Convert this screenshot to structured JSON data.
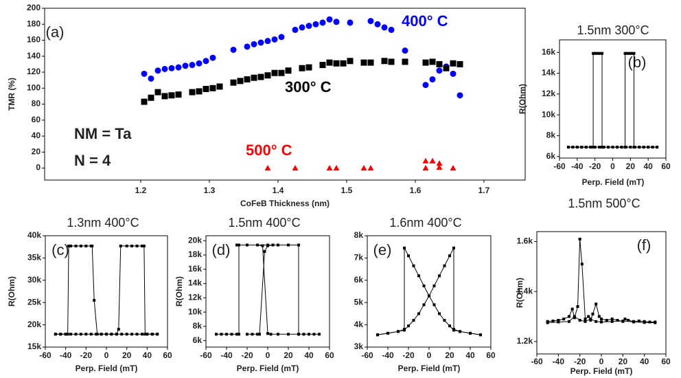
{
  "chart_data": [
    {
      "type": "scatter",
      "panel_label": "(a)",
      "annotations": [
        "NM = Ta",
        "N = 4"
      ],
      "xlabel": "CoFeB Thickness (nm)",
      "ylabel": "TMR (%)",
      "xlim": [
        1.06,
        1.76
      ],
      "xticks": [
        1.2,
        1.3,
        1.4,
        1.5,
        1.6,
        1.7
      ],
      "ylim": [
        -15,
        200
      ],
      "yticks": [
        0,
        20,
        40,
        60,
        80,
        100,
        120,
        140,
        160,
        180,
        200
      ],
      "series": [
        {
          "name": "400° C",
          "color": "#0000ff",
          "marker": "circle",
          "x": [
            1.205,
            1.215,
            1.225,
            1.235,
            1.245,
            1.255,
            1.265,
            1.275,
            1.285,
            1.295,
            1.305,
            1.335,
            1.355,
            1.365,
            1.375,
            1.385,
            1.395,
            1.405,
            1.425,
            1.435,
            1.445,
            1.455,
            1.465,
            1.475,
            1.485,
            1.505,
            1.535,
            1.545,
            1.555,
            1.565,
            1.585,
            1.615,
            1.625,
            1.635,
            1.645,
            1.655,
            1.665
          ],
          "values": [
            118,
            112,
            122,
            124,
            125,
            126,
            128,
            129,
            131,
            134,
            138,
            148,
            152,
            155,
            157,
            159,
            161,
            164,
            173,
            176,
            178,
            180,
            182,
            186,
            183,
            182,
            184,
            180,
            176,
            173,
            147,
            104,
            111,
            122,
            127,
            118,
            91
          ]
        },
        {
          "name": "300° C",
          "color": "#000000",
          "marker": "square",
          "x": [
            1.205,
            1.215,
            1.225,
            1.235,
            1.245,
            1.255,
            1.275,
            1.285,
            1.295,
            1.305,
            1.315,
            1.335,
            1.345,
            1.355,
            1.365,
            1.375,
            1.385,
            1.395,
            1.405,
            1.415,
            1.435,
            1.445,
            1.465,
            1.475,
            1.485,
            1.495,
            1.505,
            1.525,
            1.535,
            1.555,
            1.565,
            1.585,
            1.615,
            1.625,
            1.635,
            1.645,
            1.655,
            1.665
          ],
          "values": [
            83,
            88,
            95,
            90,
            91,
            92,
            95,
            96,
            99,
            100,
            102,
            107,
            109,
            111,
            113,
            114,
            116,
            119,
            119,
            122,
            125,
            126,
            129,
            132,
            131,
            131,
            134,
            132,
            132,
            134,
            133,
            133,
            132,
            133,
            130,
            125,
            131,
            130
          ]
        },
        {
          "name": "500° C",
          "color": "#ff0000",
          "marker": "triangle",
          "x": [
            1.385,
            1.425,
            1.475,
            1.485,
            1.525,
            1.535,
            1.615,
            1.615,
            1.625,
            1.635,
            1.635,
            1.655
          ],
          "values": [
            0,
            0,
            0,
            0,
            0,
            0,
            0,
            9,
            9,
            6,
            1,
            0
          ]
        }
      ]
    },
    {
      "type": "line",
      "title": "1.5nm  300°C",
      "panel_label": "(b)",
      "xlabel": "Perp. Field (mT)",
      "ylabel": "R(Ohm)",
      "xlim": [
        -60,
        60
      ],
      "xticks": [
        -60,
        -40,
        -20,
        0,
        20,
        40,
        60
      ],
      "ylim": [
        5850,
        17200
      ],
      "yticks": [
        {
          "value": 6000,
          "label": "6k"
        },
        {
          "value": 8000,
          "label": "8k"
        },
        {
          "value": 10000,
          "label": "10k"
        },
        {
          "value": 12000,
          "label": "12k"
        },
        {
          "value": 14000,
          "label": "14k"
        },
        {
          "value": 16000,
          "label": "16k"
        }
      ],
      "series": [
        {
          "color": "#000000",
          "marker": "square",
          "x": [
            -50,
            -45,
            -40,
            -35,
            -30,
            -25,
            -20,
            -15,
            -10,
            -5,
            0,
            5,
            10,
            14,
            14,
            16,
            18,
            20,
            22,
            24,
            24,
            30,
            35,
            40,
            45,
            50
          ],
          "values": [
            6900,
            6900,
            6900,
            6900,
            6900,
            6900,
            6900,
            6900,
            6900,
            6900,
            6900,
            6900,
            6900,
            6900,
            15900,
            15900,
            15900,
            15900,
            15900,
            15900,
            6900,
            6900,
            6900,
            6900,
            6900,
            6900
          ]
        },
        {
          "color": "#000000",
          "marker": "square",
          "x": [
            -50,
            -45,
            -40,
            -35,
            -30,
            -25,
            -22,
            -22,
            -20,
            -18,
            -16,
            -14,
            -12,
            -12,
            -10,
            -5,
            0,
            5,
            10,
            15,
            20,
            25,
            30,
            35,
            40,
            45,
            50
          ],
          "values": [
            6900,
            6900,
            6900,
            6900,
            6900,
            6900,
            6900,
            15900,
            15900,
            15900,
            15900,
            15900,
            15900,
            6900,
            6900,
            6900,
            6900,
            6900,
            6900,
            6900,
            6900,
            6900,
            6900,
            6900,
            6900,
            6900,
            6900
          ]
        }
      ]
    },
    {
      "type": "line",
      "title": "1.3nm  400°C",
      "panel_label": "(c)",
      "xlabel": "Perp. Field (mT)",
      "ylabel": "R(Ohm)",
      "xlim": [
        -60,
        60
      ],
      "xticks": [
        -60,
        -40,
        -20,
        0,
        20,
        40,
        60
      ],
      "ylim": [
        15000,
        40000
      ],
      "yticks": [
        {
          "value": 15000,
          "label": "15k"
        },
        {
          "value": 20000,
          "label": "20k"
        },
        {
          "value": 25000,
          "label": "25k"
        },
        {
          "value": 30000,
          "label": "30k"
        },
        {
          "value": 35000,
          "label": "35k"
        },
        {
          "value": 40000,
          "label": "40k"
        }
      ],
      "series": [
        {
          "color": "#000000",
          "marker": "square",
          "x": [
            -50,
            -45,
            -40,
            -35,
            -30,
            -25,
            -20,
            -15,
            -10,
            -5,
            0,
            5,
            10,
            12,
            14,
            20,
            25,
            30,
            35,
            37,
            38,
            40,
            45,
            50
          ],
          "values": [
            17900,
            17900,
            17900,
            17900,
            17900,
            17900,
            17900,
            17900,
            17900,
            17900,
            17900,
            17900,
            17900,
            19000,
            37700,
            37700,
            37700,
            37700,
            37700,
            37700,
            17900,
            17900,
            17900,
            17900
          ]
        },
        {
          "color": "#000000",
          "marker": "square",
          "x": [
            -50,
            -45,
            -40,
            -38,
            -37,
            -35,
            -30,
            -25,
            -20,
            -15,
            -14,
            -12,
            -9,
            -5,
            0,
            5,
            10,
            15,
            20,
            25,
            30,
            35,
            40,
            45,
            50
          ],
          "values": [
            17900,
            17900,
            17900,
            17900,
            37700,
            37700,
            37700,
            37700,
            37700,
            37700,
            37700,
            25500,
            17900,
            17900,
            17900,
            17900,
            17900,
            17900,
            17900,
            17900,
            17900,
            17900,
            17900,
            17900,
            17900
          ]
        }
      ]
    },
    {
      "type": "line",
      "title": "1.5nm  400°C",
      "panel_label": "(d)",
      "xlabel": "Perp. Field (mT)",
      "ylabel": "R(Ohm)",
      "xlim": [
        -60,
        60
      ],
      "xticks": [
        -60,
        -40,
        -20,
        0,
        20,
        40,
        60
      ],
      "ylim": [
        5100,
        20700
      ],
      "yticks": [
        {
          "value": 6000,
          "label": "6k"
        },
        {
          "value": 8000,
          "label": "8k"
        },
        {
          "value": 10000,
          "label": "10k"
        },
        {
          "value": 12000,
          "label": "12k"
        },
        {
          "value": 14000,
          "label": "14k"
        },
        {
          "value": 16000,
          "label": "16k"
        },
        {
          "value": 18000,
          "label": "18k"
        },
        {
          "value": 20000,
          "label": "20k"
        }
      ],
      "series": [
        {
          "color": "#000000",
          "marker": "square",
          "x": [
            -50,
            -45,
            -40,
            -35,
            -30,
            -28,
            -28,
            -20,
            -10,
            0,
            10,
            20,
            30,
            30,
            35,
            40,
            45,
            50
          ],
          "values": [
            6900,
            6900,
            6900,
            6900,
            6900,
            6900,
            19400,
            19400,
            19400,
            19400,
            19400,
            19400,
            19400,
            6900,
            6900,
            6900,
            6900,
            6900
          ]
        },
        {
          "color": "#000000",
          "marker": "square",
          "x": [
            -20,
            -15,
            -10,
            -8,
            -3,
            0,
            5,
            10,
            20,
            30
          ],
          "values": [
            6900,
            6900,
            6900,
            6900,
            18500,
            19300,
            19400,
            19400,
            19400,
            19400
          ]
        },
        {
          "color": "#000000",
          "marker": "square",
          "x": [
            -30,
            -20,
            -10,
            -5,
            0,
            3,
            10,
            20,
            30
          ],
          "values": [
            19400,
            19400,
            19400,
            19300,
            7000,
            6900,
            6900,
            6900,
            6900
          ]
        }
      ]
    },
    {
      "type": "line",
      "title": "1.6nm  400°C",
      "panel_label": "(e)",
      "xlabel": "Perp. Field (mT)",
      "xlim": [
        -60,
        60
      ],
      "xticks": [
        -60,
        -40,
        -20,
        0,
        20,
        40,
        60
      ],
      "ylim": [
        3000,
        8000
      ],
      "yticks": [
        {
          "value": 3000,
          "label": "3k"
        },
        {
          "value": 4000,
          "label": "4k"
        },
        {
          "value": 5000,
          "label": "5k"
        },
        {
          "value": 6000,
          "label": "6k"
        },
        {
          "value": 7000,
          "label": "7k"
        },
        {
          "value": 8000,
          "label": "8k"
        }
      ],
      "series": [
        {
          "color": "#000000",
          "marker": "square",
          "x": [
            -50,
            -40,
            -30,
            -24,
            -20,
            -15,
            -10,
            -5,
            0,
            5,
            10,
            15,
            20,
            24,
            24,
            30,
            40,
            50
          ],
          "values": [
            3550,
            3620,
            3700,
            3760,
            3950,
            4200,
            4500,
            4900,
            5300,
            5750,
            6200,
            6650,
            7100,
            7450,
            3800,
            3700,
            3620,
            3550
          ]
        },
        {
          "color": "#000000",
          "marker": "square",
          "x": [
            -50,
            -40,
            -30,
            -24,
            -24,
            -20,
            -15,
            -10,
            -5,
            0,
            5,
            10,
            15,
            20,
            24,
            30,
            40,
            50
          ],
          "values": [
            3550,
            3620,
            3700,
            3800,
            7450,
            7100,
            6650,
            6200,
            5750,
            5300,
            4900,
            4500,
            4200,
            3950,
            3760,
            3700,
            3620,
            3550
          ]
        }
      ]
    },
    {
      "type": "line",
      "title": "1.5nm  500°C",
      "panel_label": "(f)",
      "xlabel": "Perp. Field (mT)",
      "ylabel": "R(Ohm)",
      "xlim": [
        -60,
        60
      ],
      "xticks": [
        -60,
        -40,
        -20,
        0,
        20,
        40,
        60
      ],
      "ylim": [
        1150,
        1640
      ],
      "yticks": [
        {
          "value": 1200,
          "label": "1.2k"
        },
        {
          "value": 1400,
          "label": "1.4k"
        },
        {
          "value": 1600,
          "label": "1.6k"
        }
      ],
      "series": [
        {
          "color": "#000000",
          "marker": "square",
          "x": [
            -50,
            -45,
            -40,
            -35,
            -30,
            -27,
            -25,
            -22,
            -20,
            -18,
            -15,
            -12,
            -10,
            -8,
            -5,
            -2,
            0,
            5,
            10,
            15,
            20,
            22,
            25,
            30,
            35,
            40,
            45,
            50
          ],
          "values": [
            1280,
            1282,
            1285,
            1290,
            1300,
            1330,
            1295,
            1340,
            1610,
            1510,
            1290,
            1300,
            1285,
            1310,
            1350,
            1300,
            1290,
            1285,
            1290,
            1285,
            1280,
            1290,
            1285,
            1280,
            1282,
            1280,
            1278,
            1278
          ]
        },
        {
          "color": "#000000",
          "marker": "square",
          "x": [
            -50,
            -40,
            -30,
            -25,
            -20,
            -15,
            -10,
            -5,
            0,
            10,
            20,
            30,
            40,
            50
          ],
          "values": [
            1275,
            1278,
            1280,
            1300,
            1285,
            1280,
            1290,
            1280,
            1278,
            1280,
            1282,
            1278,
            1276,
            1275
          ]
        }
      ]
    }
  ]
}
